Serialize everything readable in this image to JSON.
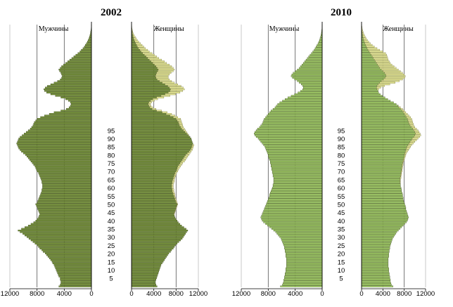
{
  "chart_data": {
    "type": "bar",
    "orientation": "horizontal",
    "description": "population pyramid",
    "age_labels": [
      "5",
      "10",
      "15",
      "20",
      "25",
      "30",
      "35",
      "40",
      "45",
      "50",
      "55",
      "60",
      "65",
      "70",
      "75",
      "80",
      "85",
      "90",
      "95"
    ],
    "sex_labels": {
      "male": "Мужчины",
      "female": "Женщины"
    },
    "x_ticks": [
      12000,
      8000,
      4000,
      0
    ],
    "x_ticks_labels_male": [
      "12000",
      "8000",
      "4000",
      "0"
    ],
    "x_ticks_labels_female": [
      "0",
      "4000",
      "8000",
      "12000"
    ],
    "xlim": [
      0,
      12000
    ],
    "colors": {
      "y2002": "#7c9a3c",
      "y2010": "#a9d86a",
      "female_surplus": "#eef09a",
      "bar_edge": "#2f3a16"
    },
    "panels": [
      {
        "title": "2002",
        "color": "#7c9a3c",
        "male": [
          4800,
          4600,
          4500,
          4500,
          4600,
          4600,
          4800,
          4900,
          5000,
          5100,
          5200,
          5300,
          5400,
          5500,
          5700,
          5800,
          6000,
          6200,
          6400,
          6600,
          6800,
          7100,
          7300,
          7600,
          7800,
          8000,
          8300,
          8600,
          8900,
          9200,
          9500,
          9800,
          10100,
          10500,
          10800,
          10300,
          9800,
          9300,
          8900,
          8500,
          8200,
          8000,
          7800,
          7700,
          7600,
          7700,
          7800,
          7900,
          8000,
          8100,
          8200,
          8000,
          7900,
          7800,
          7700,
          7600,
          7500,
          7400,
          7300,
          7300,
          7200,
          7200,
          7200,
          7300,
          7300,
          7400,
          7500,
          7600,
          7700,
          7800,
          8000,
          8100,
          8200,
          8300,
          8500,
          8700,
          8900,
          9100,
          9300,
          9500,
          9700,
          10000,
          10300,
          10500,
          10700,
          10800,
          10900,
          11000,
          10900,
          10800,
          10700,
          10500,
          10200,
          9900,
          9600,
          9300,
          9000,
          8800,
          8600,
          8500,
          8400,
          8200,
          8000,
          7500,
          6900,
          6200,
          5500,
          4500,
          3700,
          3300,
          3100,
          3000,
          3100,
          3400,
          3800,
          4500,
          5300,
          6000,
          6600,
          6900,
          7000,
          6800,
          6500,
          6000,
          5500,
          5000,
          4600,
          4400,
          4300,
          4400,
          4500,
          4700,
          4800,
          4600,
          4400,
          4100,
          3800,
          3500,
          3200,
          2900,
          2600,
          2300,
          2000,
          1700,
          1500,
          1250,
          1050,
          900,
          750,
          600,
          480,
          380,
          300,
          220,
          160,
          120,
          80,
          50,
          30,
          20
        ],
        "female": [
          4600,
          4400,
          4300,
          4300,
          4400,
          4500,
          4600,
          4700,
          4800,
          4900,
          5000,
          5100,
          5200,
          5300,
          5500,
          5700,
          5900,
          6100,
          6300,
          6500,
          6700,
          7000,
          7200,
          7500,
          7700,
          7900,
          8200,
          8500,
          8800,
          9100,
          9300,
          9500,
          9700,
          9900,
          10100,
          9800,
          9400,
          9000,
          8700,
          8400,
          8200,
          8000,
          7800,
          7700,
          7700,
          7800,
          7900,
          8000,
          8100,
          8200,
          8300,
          8200,
          8100,
          8000,
          7900,
          7800,
          7800,
          7700,
          7600,
          7600,
          7500,
          7500,
          7500,
          7600,
          7700,
          7700,
          7800,
          7900,
          8000,
          8100,
          8300,
          8400,
          8600,
          8800,
          9000,
          9200,
          9500,
          9700,
          9900,
          10100,
          10300,
          10500,
          10700,
          10900,
          11000,
          11100,
          11200,
          11000,
          10900,
          10800,
          10700,
          10500,
          10300,
          10100,
          9900,
          9700,
          9500,
          9300,
          9200,
          9100,
          9000,
          8900,
          8800,
          8300,
          7800,
          7200,
          6400,
          5400,
          4400,
          3800,
          3500,
          3400,
          3600,
          4100,
          4700,
          5800,
          6900,
          7900,
          8700,
          9200,
          9500,
          9300,
          8900,
          8300,
          7700,
          7200,
          6800,
          6600,
          6600,
          6800,
          7100,
          7500,
          7700,
          7500,
          7200,
          6800,
          6300,
          5900,
          5400,
          4900,
          4500,
          4100,
          3700,
          3200,
          2900,
          2500,
          2200,
          1900,
          1600,
          1300,
          1050,
          850,
          650,
          470,
          320,
          220,
          150,
          95,
          55,
          30
        ]
      },
      {
        "title": "2010",
        "color": "#a9d86a",
        "male": [
          6200,
          5900,
          5800,
          5700,
          5700,
          5600,
          5600,
          5500,
          5500,
          5400,
          5400,
          5400,
          5300,
          5300,
          5300,
          5300,
          5300,
          5300,
          5400,
          5400,
          5400,
          5500,
          5500,
          5600,
          5600,
          5700,
          5800,
          5900,
          6000,
          6100,
          6300,
          6500,
          6700,
          6900,
          7200,
          7500,
          7800,
          8100,
          8400,
          8700,
          8900,
          9000,
          9100,
          9000,
          8900,
          8800,
          8700,
          8600,
          8500,
          8400,
          8300,
          8200,
          8100,
          8000,
          7900,
          7800,
          7800,
          7700,
          7600,
          7500,
          7400,
          7300,
          7300,
          7200,
          7200,
          7200,
          7200,
          7300,
          7300,
          7400,
          7400,
          7500,
          7500,
          7600,
          7600,
          7700,
          7700,
          7800,
          7900,
          8000,
          8000,
          8100,
          8200,
          8300,
          8400,
          8500,
          8700,
          8900,
          9100,
          9300,
          9500,
          9800,
          10000,
          10100,
          10000,
          9800,
          9600,
          9300,
          9100,
          8900,
          8800,
          8700,
          8600,
          8400,
          8200,
          8000,
          7800,
          7600,
          7300,
          7000,
          6800,
          6600,
          6300,
          5900,
          5500,
          5100,
          4600,
          4100,
          3600,
          3200,
          2900,
          2800,
          2900,
          3100,
          3400,
          3700,
          4100,
          4400,
          4600,
          4500,
          4300,
          4000,
          3700,
          3400,
          3200,
          3000,
          2800,
          2600,
          2400,
          2200,
          2000,
          1800,
          1600,
          1400,
          1200,
          1050,
          900,
          750,
          620,
          500,
          400,
          320,
          250,
          190,
          140,
          100,
          65,
          40,
          25,
          15
        ],
        "female": [
          5900,
          5600,
          5500,
          5400,
          5400,
          5300,
          5300,
          5200,
          5200,
          5100,
          5100,
          5100,
          5000,
          5000,
          5000,
          5000,
          5000,
          5000,
          5100,
          5100,
          5100,
          5200,
          5200,
          5300,
          5300,
          5400,
          5500,
          5600,
          5700,
          5800,
          6000,
          6200,
          6400,
          6600,
          6900,
          7200,
          7500,
          7800,
          8100,
          8400,
          8600,
          8700,
          8800,
          8700,
          8600,
          8500,
          8400,
          8300,
          8300,
          8200,
          8100,
          8000,
          7900,
          7800,
          7800,
          7700,
          7700,
          7600,
          7500,
          7500,
          7400,
          7300,
          7300,
          7300,
          7300,
          7300,
          7400,
          7400,
          7500,
          7500,
          7600,
          7600,
          7700,
          7700,
          7800,
          7800,
          7900,
          8000,
          8100,
          8200,
          8300,
          8400,
          8600,
          8800,
          9000,
          9200,
          9400,
          9700,
          10000,
          10300,
          10600,
          10900,
          11100,
          11000,
          10800,
          10600,
          10300,
          10000,
          9800,
          9700,
          9600,
          9500,
          9400,
          9200,
          8900,
          8600,
          8300,
          8000,
          7700,
          7300,
          6900,
          6500,
          6000,
          5400,
          4900,
          4400,
          3900,
          3500,
          3200,
          3100,
          3200,
          3600,
          4300,
          5300,
          6300,
          7100,
          7700,
          8100,
          8200,
          8000,
          7700,
          7300,
          6900,
          6500,
          6100,
          5700,
          5400,
          5200,
          5000,
          4900,
          4800,
          4700,
          4500,
          4000,
          3400,
          2900,
          2400,
          2000,
          1650,
          1350,
          1100,
          880,
          700,
          540,
          400,
          290,
          200,
          130,
          80,
          45
        ]
      }
    ]
  }
}
